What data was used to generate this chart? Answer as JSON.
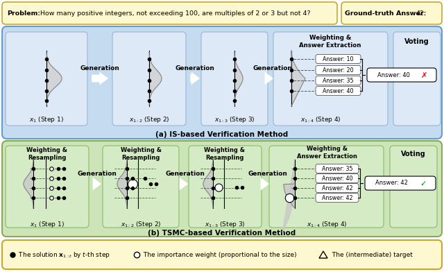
{
  "problem_text_bold": "Problem:",
  "problem_text_regular": " How many positive integers, not exceeding 100, are multiples of 2 or 3 but not 4?",
  "gt_answer_bold": "Ground-truth Answer:",
  "gt_answer_num": " 42",
  "top_bg_color": "#c5dcf0",
  "top_border_color": "#6699cc",
  "bot_bg_color": "#cde4b8",
  "bot_border_color": "#88aa55",
  "header_bg_color": "#fef8d0",
  "header_border_color": "#c8a82a",
  "subpanel_is_bg": "#dde9f7",
  "subpanel_is_edge": "#9ab5d0",
  "subpanel_tsmc_bg": "#d5ebc5",
  "subpanel_tsmc_edge": "#88bb66",
  "legend_bg_color": "#fef8d0",
  "legend_border_color": "#c8a82a",
  "caption_a": "(a) IS-based Verification Method",
  "caption_b": "(b) TSMC-based Verification Method",
  "is_answers": [
    "Answer: 10",
    "Answer: 20",
    "Answer: 35",
    "Answer: 40"
  ],
  "tsmc_answers": [
    "Answer: 35",
    "Answer: 40",
    "Answer: 42",
    "Answer: 42"
  ],
  "is_vote": "Answer: 40",
  "tsmc_vote": "Answer: 42",
  "generation_label": "Generation",
  "weighting_ae_label": "Weighting &\nAnswer Extraction",
  "weighting_rs_label": "Weighting &\nResampling",
  "voting_label": "Voting"
}
